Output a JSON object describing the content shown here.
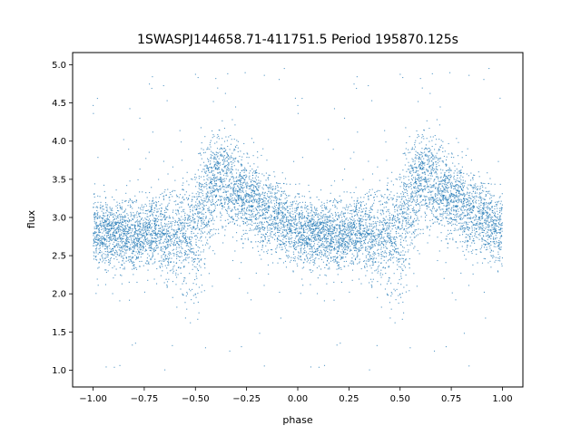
{
  "chart_data": {
    "type": "scatter",
    "title": "1SWASPJ144658.71-411751.5 Period 195870.125s",
    "xlabel": "phase",
    "ylabel": "flux",
    "xlim": [
      -1.1,
      1.1
    ],
    "ylim": [
      0.78,
      5.16
    ],
    "xticks": [
      -1.0,
      -0.75,
      -0.5,
      -0.25,
      0.0,
      0.25,
      0.5,
      0.75,
      1.0
    ],
    "xtick_labels": [
      "−1.00",
      "−0.75",
      "−0.50",
      "−0.25",
      "0.00",
      "0.25",
      "0.50",
      "0.75",
      "1.00"
    ],
    "yticks": [
      1.0,
      1.5,
      2.0,
      2.5,
      3.0,
      3.5,
      4.0,
      4.5,
      5.0
    ],
    "ytick_labels": [
      "1.0",
      "1.5",
      "2.0",
      "2.5",
      "3.0",
      "3.5",
      "4.0",
      "4.5",
      "5.0"
    ],
    "grid": false,
    "point_color": "#1f77b4",
    "phase_profile": {
      "phase": [
        0.0,
        0.1,
        0.2,
        0.3,
        0.33,
        0.36,
        0.4,
        0.45,
        0.5,
        0.55,
        0.6,
        0.65,
        0.7,
        0.75,
        0.8,
        0.85,
        0.9,
        0.95,
        1.0
      ],
      "flux_median": [
        2.8,
        2.8,
        2.78,
        2.8,
        2.8,
        2.75,
        2.75,
        2.75,
        2.8,
        3.3,
        3.5,
        3.45,
        3.35,
        3.25,
        3.15,
        3.05,
        3.0,
        2.9,
        2.85
      ],
      "flux_spread": [
        0.22,
        0.22,
        0.22,
        0.22,
        0.25,
        0.3,
        0.3,
        0.35,
        0.4,
        0.4,
        0.3,
        0.3,
        0.28,
        0.27,
        0.27,
        0.26,
        0.25,
        0.24,
        0.22
      ]
    }
  }
}
